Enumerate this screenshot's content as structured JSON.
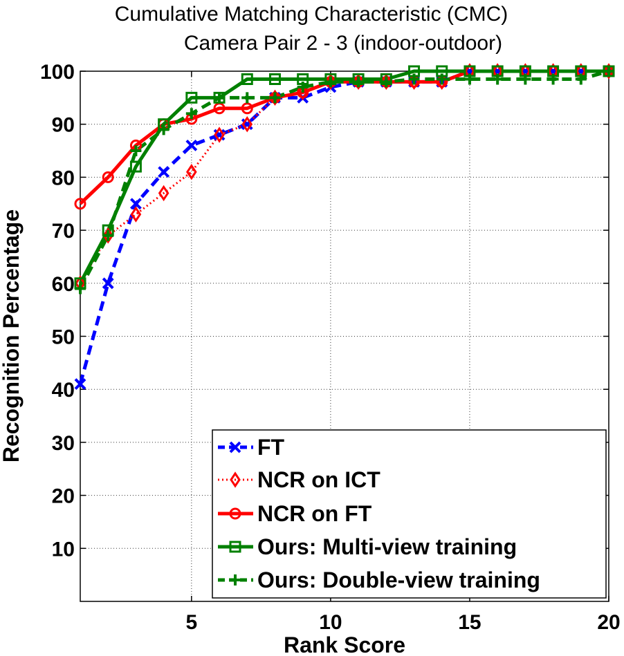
{
  "chart_data": {
    "type": "line",
    "title": "Cumulative Matching Characteristic (CMC)",
    "subtitle": "Camera Pair 2 - 3 (indoor-outdoor)",
    "xlabel": "Rank Score",
    "ylabel": "Recognition Percentage",
    "xlim": [
      1,
      20
    ],
    "ylim": [
      0,
      100
    ],
    "xticks": [
      5,
      10,
      15,
      20
    ],
    "yticks": [
      10,
      20,
      30,
      40,
      50,
      60,
      70,
      80,
      90,
      100
    ],
    "grid": true,
    "legend_position": "bottom-right",
    "x": [
      1,
      2,
      3,
      4,
      5,
      6,
      7,
      8,
      9,
      10,
      11,
      12,
      13,
      14,
      15,
      16,
      17,
      18,
      19,
      20
    ],
    "series": [
      {
        "name": "FT",
        "color": "#0000ff",
        "line": "dashed",
        "marker": "x",
        "values": [
          41,
          60,
          75,
          81,
          86,
          88,
          90,
          95,
          95,
          97,
          98,
          98,
          98,
          98,
          100,
          100,
          100,
          100,
          100,
          100
        ]
      },
      {
        "name": "NCR on ICT",
        "color": "#ff0000",
        "line": "dotted",
        "marker": "diamond",
        "values": [
          60,
          69,
          73,
          77,
          81,
          88,
          90,
          95,
          96,
          98,
          98,
          98,
          98,
          98,
          100,
          100,
          100,
          100,
          100,
          100
        ]
      },
      {
        "name": "NCR on FT",
        "color": "#ff0000",
        "line": "solid",
        "marker": "circle",
        "values": [
          75,
          80,
          86,
          90,
          91,
          93,
          93,
          95,
          96,
          98,
          98,
          98,
          98,
          98,
          100,
          100,
          100,
          100,
          100,
          100
        ]
      },
      {
        "name": "Ours: Multi-view training",
        "color": "#008000",
        "line": "solid",
        "marker": "square",
        "values": [
          60,
          70,
          82,
          90,
          95,
          95,
          98.5,
          98.5,
          98.5,
          98.5,
          98.5,
          98.5,
          100,
          100,
          100,
          100,
          100,
          100,
          100,
          100
        ]
      },
      {
        "name": "Ours: Double-view training",
        "color": "#008000",
        "line": "dashed",
        "marker": "plus",
        "values": [
          59,
          69,
          85,
          89,
          92,
          95,
          95,
          95,
          97,
          98,
          98,
          98,
          98.5,
          98.5,
          98.5,
          98.5,
          98.5,
          98.5,
          98.5,
          100
        ]
      }
    ]
  }
}
